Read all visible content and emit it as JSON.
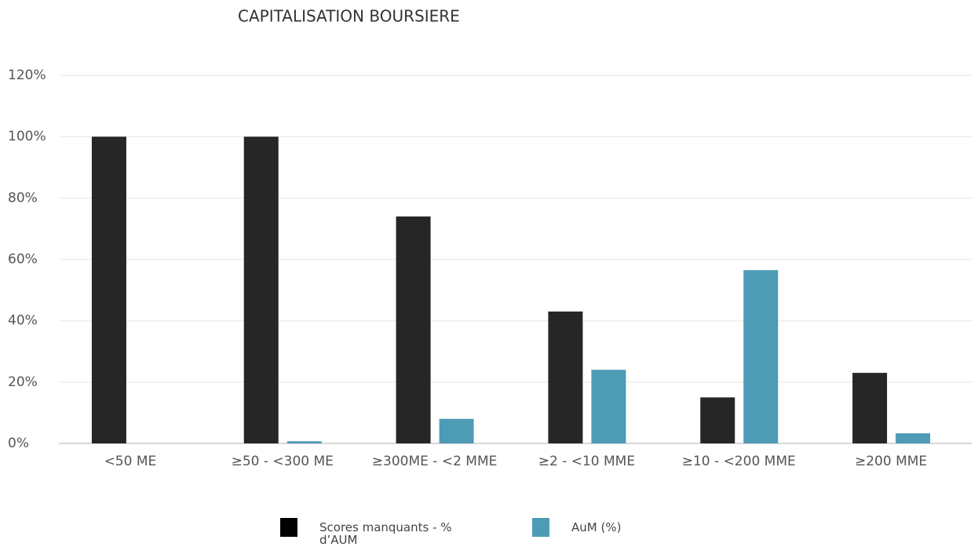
{
  "chart_data": {
    "type": "bar",
    "title": "CAPITALISATION BOURSIERE",
    "categories": [
      "<50 ME",
      "≥50 - <300 ME",
      "≥300ME - <2 MME",
      "≥2 - <10 MME",
      "≥10 - <200 MME",
      "≥200 MME"
    ],
    "series": [
      {
        "name": "Scores manquants - % d’AUM",
        "color": "#262626",
        "values": [
          100,
          100,
          74,
          43,
          15,
          23
        ]
      },
      {
        "name": "AuM (%)",
        "color": "#4e9bb5",
        "values": [
          0,
          0.7,
          8,
          24,
          56.5,
          3.3
        ]
      }
    ],
    "ylim": [
      0,
      120
    ],
    "yticks": [
      {
        "value": 0,
        "label": "0%"
      },
      {
        "value": 20,
        "label": "20%"
      },
      {
        "value": 40,
        "label": "40%"
      },
      {
        "value": 60,
        "label": "60%"
      },
      {
        "value": 80,
        "label": "80%"
      },
      {
        "value": 100,
        "label": "100%"
      },
      {
        "value": 120,
        "label": "120%"
      }
    ],
    "grid": true
  }
}
